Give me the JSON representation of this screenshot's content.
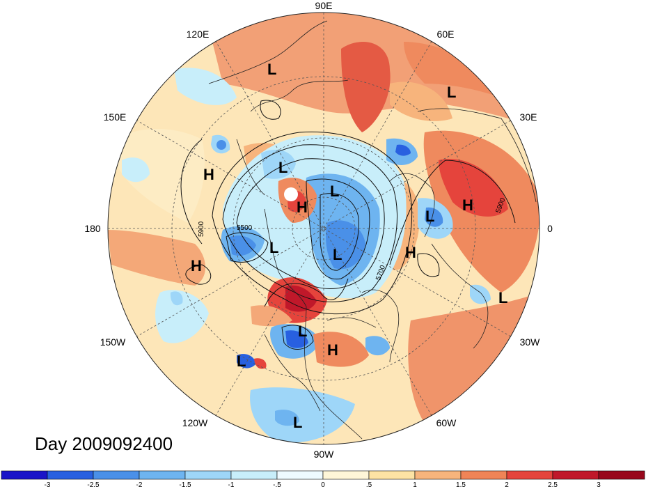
{
  "title": "Day 2009092400",
  "longitude_labels": [
    {
      "id": "lon-90e",
      "text": "90E"
    },
    {
      "id": "lon-60e",
      "text": "60E"
    },
    {
      "id": "lon-30e",
      "text": "30E"
    },
    {
      "id": "lon-0",
      "text": "0"
    },
    {
      "id": "lon-30w",
      "text": "30W"
    },
    {
      "id": "lon-60w",
      "text": "60W"
    },
    {
      "id": "lon-90w",
      "text": "90W"
    },
    {
      "id": "lon-120w",
      "text": "120W"
    },
    {
      "id": "lon-150w",
      "text": "150W"
    },
    {
      "id": "lon-180",
      "text": "180"
    },
    {
      "id": "lon-150e",
      "text": "150E"
    },
    {
      "id": "lon-120e",
      "text": "120E"
    }
  ],
  "pressure_centers": [
    {
      "type": "L",
      "near": "East Siberia"
    },
    {
      "type": "L",
      "near": "Western Russia"
    },
    {
      "type": "H",
      "near": "Bering Sea"
    },
    {
      "type": "L",
      "near": "Arctic (Siberian side)"
    },
    {
      "type": "L",
      "near": "Arctic (north)"
    },
    {
      "type": "H",
      "near": "Arctic (central)"
    },
    {
      "type": "L",
      "near": "Scandinavia"
    },
    {
      "type": "H",
      "near": "Central Russia"
    },
    {
      "type": "L",
      "near": "Beaufort Sea"
    },
    {
      "type": "L",
      "near": "Baffin Bay"
    },
    {
      "type": "H",
      "near": "North Atlantic"
    },
    {
      "type": "H",
      "near": "North Pacific"
    },
    {
      "type": "L",
      "near": "Eastern Atlantic"
    },
    {
      "type": "L",
      "near": "Central North America"
    },
    {
      "type": "H",
      "near": "Southeastern US"
    },
    {
      "type": "L",
      "near": "Eastern Pacific"
    },
    {
      "type": "L",
      "near": "Caribbean"
    }
  ],
  "contour_labels": [
    "5500",
    "5700",
    "5900",
    "5900"
  ],
  "colorbar": {
    "ticks": [
      "-3",
      "-2.5",
      "-2",
      "-1.5",
      "-1",
      "-.5",
      "0",
      ".5",
      "1",
      "1.5",
      "2",
      "2.5",
      "3"
    ],
    "colors": [
      "#1a14c8",
      "#2860e0",
      "#4a90e8",
      "#6eb4f0",
      "#9ed6f8",
      "#c8eefa",
      "#eefaff",
      "#fff6d8",
      "#fde3a4",
      "#f7b47c",
      "#ef8457",
      "#e5443c",
      "#c0182a",
      "#98081c"
    ]
  }
}
